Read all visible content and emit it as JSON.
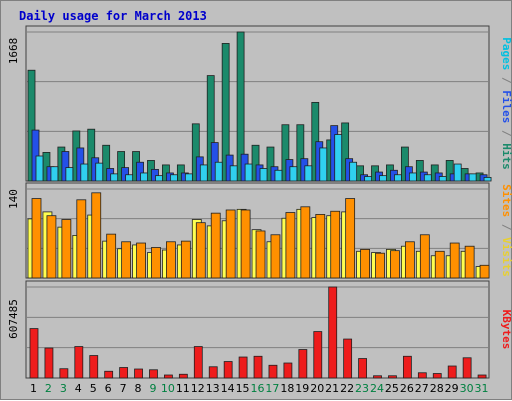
{
  "title": "Daily usage for March 2013",
  "colors": {
    "hits": "#1b8a6b",
    "files": "#2450e8",
    "pages": "#30d0f0",
    "visits": "#ffff50",
    "sites": "#ff9000",
    "kbytes": "#ee1c1c",
    "weekday_label": "#000000",
    "weekend_label": "#008040",
    "separator": "#808080"
  },
  "chart_data": [
    {
      "type": "bar",
      "panel": "top",
      "ytick_label": "1668",
      "ylim": [
        0,
        1668
      ],
      "right_labels": [
        {
          "text": "Pages",
          "color": "#00c0e0"
        },
        {
          "text": " / ",
          "color": "#808080"
        },
        {
          "text": "Files",
          "color": "#2450e8"
        },
        {
          "text": " / ",
          "color": "#808080"
        },
        {
          "text": "Hits",
          "color": "#1b8a6b"
        }
      ],
      "categories": [
        "1",
        "2",
        "3",
        "4",
        "5",
        "6",
        "7",
        "8",
        "9",
        "10",
        "11",
        "12",
        "13",
        "14",
        "15",
        "16",
        "17",
        "18",
        "19",
        "20",
        "21",
        "22",
        "23",
        "24",
        "25",
        "26",
        "27",
        "28",
        "29",
        "30",
        "31"
      ],
      "series": [
        {
          "name": "Hits",
          "color_key": "hits",
          "values": [
            1240,
            320,
            380,
            560,
            580,
            400,
            330,
            330,
            230,
            180,
            180,
            640,
            1180,
            1540,
            1668,
            400,
            380,
            630,
            630,
            880,
            460,
            650,
            170,
            170,
            180,
            380,
            230,
            180,
            230,
            140,
            90
          ]
        },
        {
          "name": "Files",
          "color_key": "files",
          "values": [
            570,
            160,
            330,
            370,
            260,
            140,
            150,
            210,
            130,
            90,
            90,
            270,
            430,
            290,
            300,
            180,
            160,
            240,
            250,
            440,
            620,
            250,
            70,
            100,
            120,
            160,
            100,
            90,
            80,
            80,
            70
          ]
        },
        {
          "name": "Pages",
          "color_key": "pages",
          "values": [
            280,
            160,
            150,
            190,
            200,
            80,
            70,
            90,
            60,
            70,
            80,
            180,
            210,
            170,
            190,
            140,
            120,
            160,
            170,
            370,
            520,
            210,
            50,
            60,
            70,
            90,
            70,
            50,
            190,
            80,
            40
          ]
        }
      ]
    },
    {
      "type": "bar",
      "panel": "middle",
      "ytick_label": "140",
      "ylim": [
        0,
        140
      ],
      "right_labels": [
        {
          "text": "Sites",
          "color": "#ff9000"
        },
        {
          "text": " / ",
          "color": "#808080"
        },
        {
          "text": "Visits",
          "color": "#e8d030"
        }
      ],
      "categories": [
        "1",
        "2",
        "3",
        "4",
        "5",
        "6",
        "7",
        "8",
        "9",
        "10",
        "11",
        "12",
        "13",
        "14",
        "15",
        "16",
        "17",
        "18",
        "19",
        "20",
        "21",
        "22",
        "23",
        "24",
        "25",
        "26",
        "27",
        "28",
        "29",
        "30",
        "31"
      ],
      "series": [
        {
          "name": "Visits",
          "color_key": "visits",
          "values": [
            93,
            104,
            80,
            67,
            99,
            58,
            46,
            52,
            40,
            44,
            52,
            92,
            82,
            90,
            108,
            76,
            57,
            94,
            108,
            95,
            98,
            104,
            42,
            40,
            45,
            50,
            42,
            35,
            35,
            42,
            18
          ]
        },
        {
          "name": "Sites",
          "color_key": "sites",
          "values": [
            125,
            98,
            92,
            123,
            134,
            69,
            57,
            55,
            48,
            57,
            58,
            87,
            102,
            107,
            107,
            74,
            68,
            103,
            112,
            100,
            105,
            125,
            45,
            39,
            43,
            57,
            68,
            42,
            55,
            50,
            20
          ]
        }
      ]
    },
    {
      "type": "bar",
      "panel": "bottom",
      "ytick_label": "607485",
      "ylim": [
        0,
        607485
      ],
      "right_labels": [
        {
          "text": "KBytes",
          "color": "#ee1c1c"
        }
      ],
      "categories": [
        "1",
        "2",
        "3",
        "4",
        "5",
        "6",
        "7",
        "8",
        "9",
        "10",
        "11",
        "12",
        "13",
        "14",
        "15",
        "16",
        "17",
        "18",
        "19",
        "20",
        "21",
        "22",
        "23",
        "24",
        "25",
        "26",
        "27",
        "28",
        "29",
        "30",
        "31"
      ],
      "series": [
        {
          "name": "KBytes",
          "color_key": "kbytes",
          "values": [
            330000,
            200000,
            62000,
            210000,
            150000,
            45000,
            70000,
            60000,
            55000,
            20000,
            25000,
            210000,
            75000,
            110000,
            140000,
            145000,
            85000,
            100000,
            190000,
            310000,
            607485,
            260000,
            130000,
            15000,
            15000,
            145000,
            35000,
            30000,
            80000,
            135000,
            20000
          ]
        }
      ]
    }
  ],
  "x_axis": {
    "labels": [
      "1",
      "2",
      "3",
      "4",
      "5",
      "6",
      "7",
      "8",
      "9",
      "10",
      "11",
      "12",
      "13",
      "14",
      "15",
      "16",
      "17",
      "18",
      "19",
      "20",
      "21",
      "22",
      "23",
      "24",
      "25",
      "26",
      "27",
      "28",
      "29",
      "30",
      "31"
    ],
    "weekend_days": [
      "2",
      "3",
      "9",
      "10",
      "16",
      "17",
      "23",
      "24",
      "30",
      "31"
    ]
  }
}
